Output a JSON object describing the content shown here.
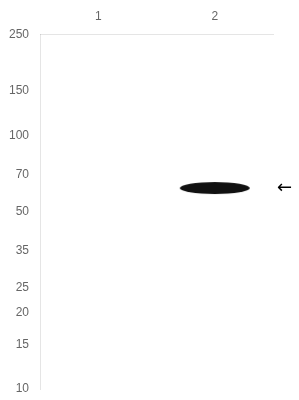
{
  "chart_data": {
    "type": "blot",
    "categories": [
      "1",
      "2"
    ],
    "values": [
      null,
      62
    ],
    "color": "#111111",
    "marker": "ellipse",
    "ylim": [
      10,
      250
    ],
    "yticks": [
      250,
      150,
      100,
      70,
      50,
      35,
      25,
      20,
      15,
      10
    ],
    "log": "y",
    "grid": false,
    "annotations": [
      {
        "text": "←",
        "y": 62
      }
    ]
  }
}
